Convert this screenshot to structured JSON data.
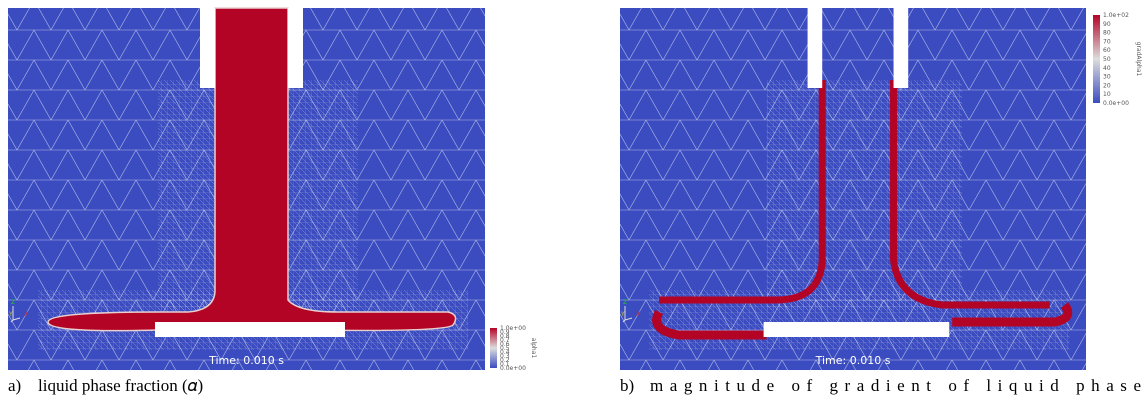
{
  "panels": [
    {
      "label": "a)",
      "caption": "liquid phase fraction (𝛼)",
      "time": "Time: 0.010 s",
      "axes": [
        "Z",
        "Y",
        "X"
      ],
      "colorbar": {
        "title": "alpha1",
        "ticks": [
          "1.0e+00",
          "0.9",
          "0.8",
          "0.7",
          "0.6",
          "0.5",
          "0.4",
          "0.3",
          "0.2",
          "0.1",
          "0.0e+00"
        ]
      }
    },
    {
      "label": "b)",
      "caption": "magnitude of gradient of liquid phase",
      "time": "Time: 0.010 s",
      "axes": [
        "Z",
        "Y",
        "X"
      ],
      "colorbar": {
        "title": "gradAlpha1",
        "ticks": [
          "1.0e+02",
          "90",
          "80",
          "70",
          "60",
          "50",
          "40",
          "30",
          "20",
          "10",
          "0.0e+00"
        ]
      }
    }
  ]
}
